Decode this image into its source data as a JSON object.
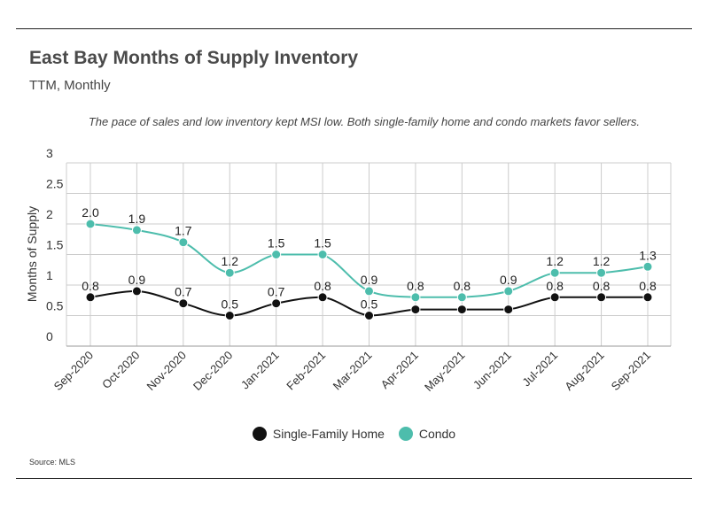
{
  "header": {
    "title": "East Bay Months of Supply Inventory",
    "subtitle": "TTM, Monthly",
    "note": "The pace of sales and low inventory kept MSI low. Both single-family home and condo markets favor sellers."
  },
  "footer": {
    "source": "Source:  MLS"
  },
  "colors": {
    "single_family": "#111111",
    "condo": "#4dbdac",
    "grid": "#cccccc",
    "text": "#333333"
  },
  "chart_data": {
    "type": "line",
    "title": "East Bay Months of Supply Inventory",
    "subtitle": "TTM, Monthly",
    "ylabel": "Months of Supply",
    "xlabel": "",
    "ylim": [
      0,
      3
    ],
    "yticks": [
      "0",
      "0.5",
      "1",
      "1.5",
      "2",
      "2.5",
      "3"
    ],
    "grid": true,
    "legend": "bottom-center",
    "categories": [
      "Sep-2020",
      "Oct-2020",
      "Nov-2020",
      "Dec-2020",
      "Jan-2021",
      "Feb-2021",
      "Mar-2021",
      "Apr-2021",
      "May-2021",
      "Jun-2021",
      "Jul-2021",
      "Aug-2021",
      "Sep-2021"
    ],
    "series": [
      {
        "name": "Single-Family Home",
        "values": [
          0.8,
          0.9,
          0.7,
          0.5,
          0.7,
          0.8,
          0.5,
          0.6,
          0.6,
          0.6,
          0.8,
          0.8,
          0.8
        ],
        "labels": [
          "0.8",
          "0.9",
          "0.7",
          "0.5",
          "0.7",
          "0.8",
          "0.5",
          "",
          "",
          "",
          "0.8",
          "0.8",
          "0.8"
        ]
      },
      {
        "name": "Condo",
        "values": [
          2.0,
          1.9,
          1.7,
          1.2,
          1.5,
          1.5,
          0.9,
          0.8,
          0.8,
          0.9,
          1.2,
          1.2,
          1.3
        ],
        "labels": [
          "2.0",
          "1.9",
          "1.7",
          "1.2",
          "1.5",
          "1.5",
          "0.9",
          "0.8",
          "0.8",
          "0.9",
          "1.2",
          "1.2",
          "1.3"
        ]
      }
    ]
  }
}
